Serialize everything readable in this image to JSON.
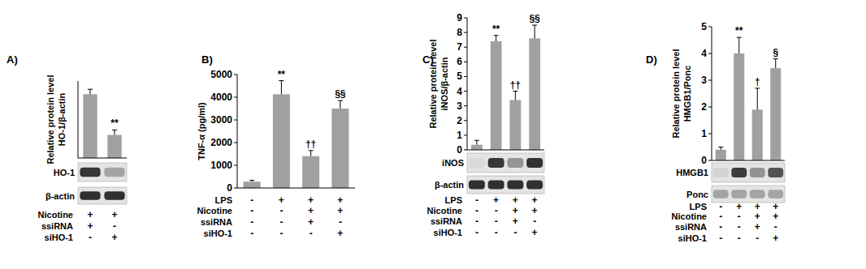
{
  "chart_data": [
    {
      "type": "bar",
      "title": "A)",
      "y_label": [
        "Relative protein level",
        "HO-1/β-actin"
      ],
      "categories": [
        null,
        null
      ],
      "values": [
        5.8,
        2.1
      ],
      "errors": [
        0.45,
        0.45
      ],
      "annotations": [
        null,
        "**"
      ],
      "color": "#a0a0a0",
      "ylim": [
        0,
        7
      ],
      "tick_labels": false,
      "blot_labels": [
        "HO-1",
        "β-actin"
      ],
      "conditions": [
        {
          "name": "Nicotine",
          "values": [
            "+",
            "+"
          ]
        },
        {
          "name": "ssiRNA",
          "values": [
            "+",
            "-"
          ]
        },
        {
          "name": "siHO-1",
          "values": [
            "-",
            "+"
          ]
        }
      ]
    },
    {
      "type": "bar",
      "title": "B)",
      "y_label": [
        "TNF-α (pg/ml)"
      ],
      "categories": [
        null,
        null,
        null,
        null
      ],
      "values": [
        280,
        4130,
        1400,
        3500
      ],
      "errors": [
        60,
        600,
        250,
        350
      ],
      "annotations": [
        null,
        "**",
        "††",
        "§§"
      ],
      "color": "#a0a0a0",
      "ylim": [
        0,
        5000
      ],
      "yticks": [
        0,
        1000,
        2000,
        3000,
        4000,
        5000
      ],
      "conditions": [
        {
          "name": "LPS",
          "values": [
            "-",
            "+",
            "+",
            "+"
          ]
        },
        {
          "name": "Nicotine",
          "values": [
            "-",
            "-",
            "+",
            "+"
          ]
        },
        {
          "name": "ssiRNA",
          "values": [
            "-",
            "-",
            "+",
            "-"
          ]
        },
        {
          "name": "siHO-1",
          "values": [
            "-",
            "-",
            "-",
            "+"
          ]
        }
      ]
    },
    {
      "type": "bar",
      "title": "C)",
      "y_label": [
        "Relative protein level",
        "iNOS/β-actin"
      ],
      "categories": [
        null,
        null,
        null,
        null
      ],
      "values": [
        0.35,
        7.4,
        3.4,
        7.6
      ],
      "errors": [
        0.3,
        0.4,
        0.6,
        0.9
      ],
      "annotations": [
        null,
        "**",
        "††",
        "§§"
      ],
      "color": "#a0a0a0",
      "ylim": [
        0,
        9
      ],
      "yticks": [
        0,
        1,
        2,
        3,
        4,
        5,
        6,
        7,
        8,
        9
      ],
      "blot_labels": [
        "iNOS",
        "β-actin"
      ],
      "conditions": [
        {
          "name": "LPS",
          "values": [
            "-",
            "+",
            "+",
            "+"
          ]
        },
        {
          "name": "Nicotine",
          "values": [
            "-",
            "-",
            "+",
            "+"
          ]
        },
        {
          "name": "ssiRNA",
          "values": [
            "-",
            "-",
            "+",
            "-"
          ]
        },
        {
          "name": "siHO-1",
          "values": [
            "-",
            "-",
            "-",
            "+"
          ]
        }
      ]
    },
    {
      "type": "bar",
      "title": "D)",
      "y_label": [
        "Relative protein level",
        "HMGB1/Ponc"
      ],
      "categories": [
        null,
        null,
        null,
        null
      ],
      "values": [
        0.4,
        4.0,
        1.9,
        3.45
      ],
      "errors": [
        0.1,
        0.6,
        0.8,
        0.35
      ],
      "annotations": [
        null,
        "**",
        "†",
        "§"
      ],
      "color": "#a0a0a0",
      "ylim": [
        0,
        5
      ],
      "yticks": [
        0,
        1,
        2,
        3,
        4,
        5
      ],
      "blot_labels": [
        "HMGB1",
        "Ponc"
      ],
      "conditions": [
        {
          "name": "LPS",
          "values": [
            "-",
            "+",
            "+",
            "+"
          ]
        },
        {
          "name": "Nicotine",
          "values": [
            "-",
            "-",
            "+",
            "+"
          ]
        },
        {
          "name": "ssiRNA",
          "values": [
            "-",
            "-",
            "+",
            "-"
          ]
        },
        {
          "name": "siHO-1",
          "values": [
            "-",
            "-",
            "-",
            "+"
          ]
        }
      ]
    }
  ]
}
